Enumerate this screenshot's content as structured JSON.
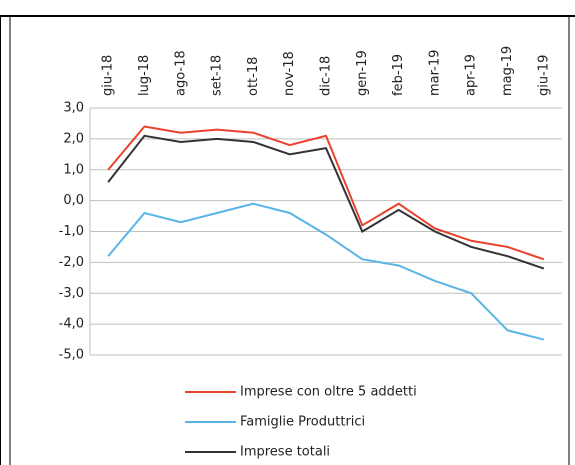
{
  "chart_data": {
    "type": "line",
    "categories": [
      "giu-18",
      "lug-18",
      "ago-18",
      "set-18",
      "ott-18",
      "nov-18",
      "dic-18",
      "gen-19",
      "feb-19",
      "mar-19",
      "apr-19",
      "mag-19",
      "giu-19"
    ],
    "series": [
      {
        "name": "Imprese con oltre 5 addetti",
        "color": "#e8412c",
        "values": [
          1.0,
          2.4,
          2.2,
          2.3,
          2.2,
          1.8,
          2.1,
          -0.8,
          -0.1,
          -0.9,
          -1.3,
          -1.5,
          -1.9
        ]
      },
      {
        "name": "Famiglie Produttrici",
        "color": "#5ab4e5",
        "values": [
          -1.8,
          -0.4,
          -0.7,
          -0.4,
          -0.1,
          -0.4,
          -1.1,
          -1.9,
          -2.1,
          -2.6,
          -3.0,
          -4.2,
          -4.5
        ]
      },
      {
        "name": "Imprese totali",
        "color": "#333333",
        "values": [
          0.6,
          2.1,
          1.9,
          2.0,
          1.9,
          1.5,
          1.7,
          -1.0,
          -0.3,
          -1.0,
          -1.5,
          -1.8,
          -2.2
        ]
      }
    ],
    "ylim": [
      -5,
      3
    ],
    "yticks": [
      {
        "value": 3,
        "label": "3,0"
      },
      {
        "value": 2,
        "label": "2,0"
      },
      {
        "value": 1,
        "label": "1,0"
      },
      {
        "value": 0,
        "label": "0,0"
      },
      {
        "value": -1,
        "label": "-1,0"
      },
      {
        "value": -2,
        "label": "-2,0"
      },
      {
        "value": -3,
        "label": "-3,0"
      },
      {
        "value": -4,
        "label": "-4,0"
      },
      {
        "value": -5,
        "label": "-5,0"
      }
    ],
    "grid": true
  }
}
